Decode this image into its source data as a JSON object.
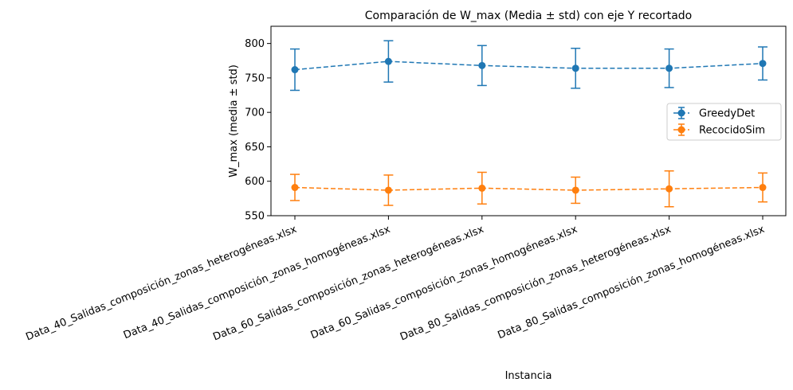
{
  "chart_data": {
    "type": "line",
    "title": "Comparación de W_max (Media ± std) con eje Y recortado",
    "xlabel": "Instancia",
    "ylabel": "W_max (media ± std)",
    "ylim": [
      550,
      825
    ],
    "yticks": [
      550,
      600,
      650,
      700,
      750,
      800
    ],
    "categories": [
      "Data_40_Salidas_composición_zonas_heterogéneas.xlsx",
      "Data_40_Salidas_composición_zonas_homogéneas.xlsx",
      "Data_60_Salidas_composición_zonas_heterogéneas.xlsx",
      "Data_60_Salidas_composición_zonas_homogéneas.xlsx",
      "Data_80_Salidas_composición_zonas_heterogéneas.xlsx",
      "Data_80_Salidas_composición_zonas_homogéneas.xlsx"
    ],
    "series": [
      {
        "name": "GreedyDet",
        "color": "#1f77b4",
        "values": [
          762,
          774,
          768,
          764,
          764,
          771
        ],
        "std": [
          30,
          30,
          29,
          29,
          28,
          24
        ]
      },
      {
        "name": "RecocidoSim",
        "color": "#ff7f0e",
        "values": [
          591,
          587,
          590,
          587,
          589,
          591
        ],
        "std": [
          19,
          22,
          23,
          19,
          26,
          21
        ]
      }
    ],
    "grid": false,
    "legend_position": "center-right"
  }
}
